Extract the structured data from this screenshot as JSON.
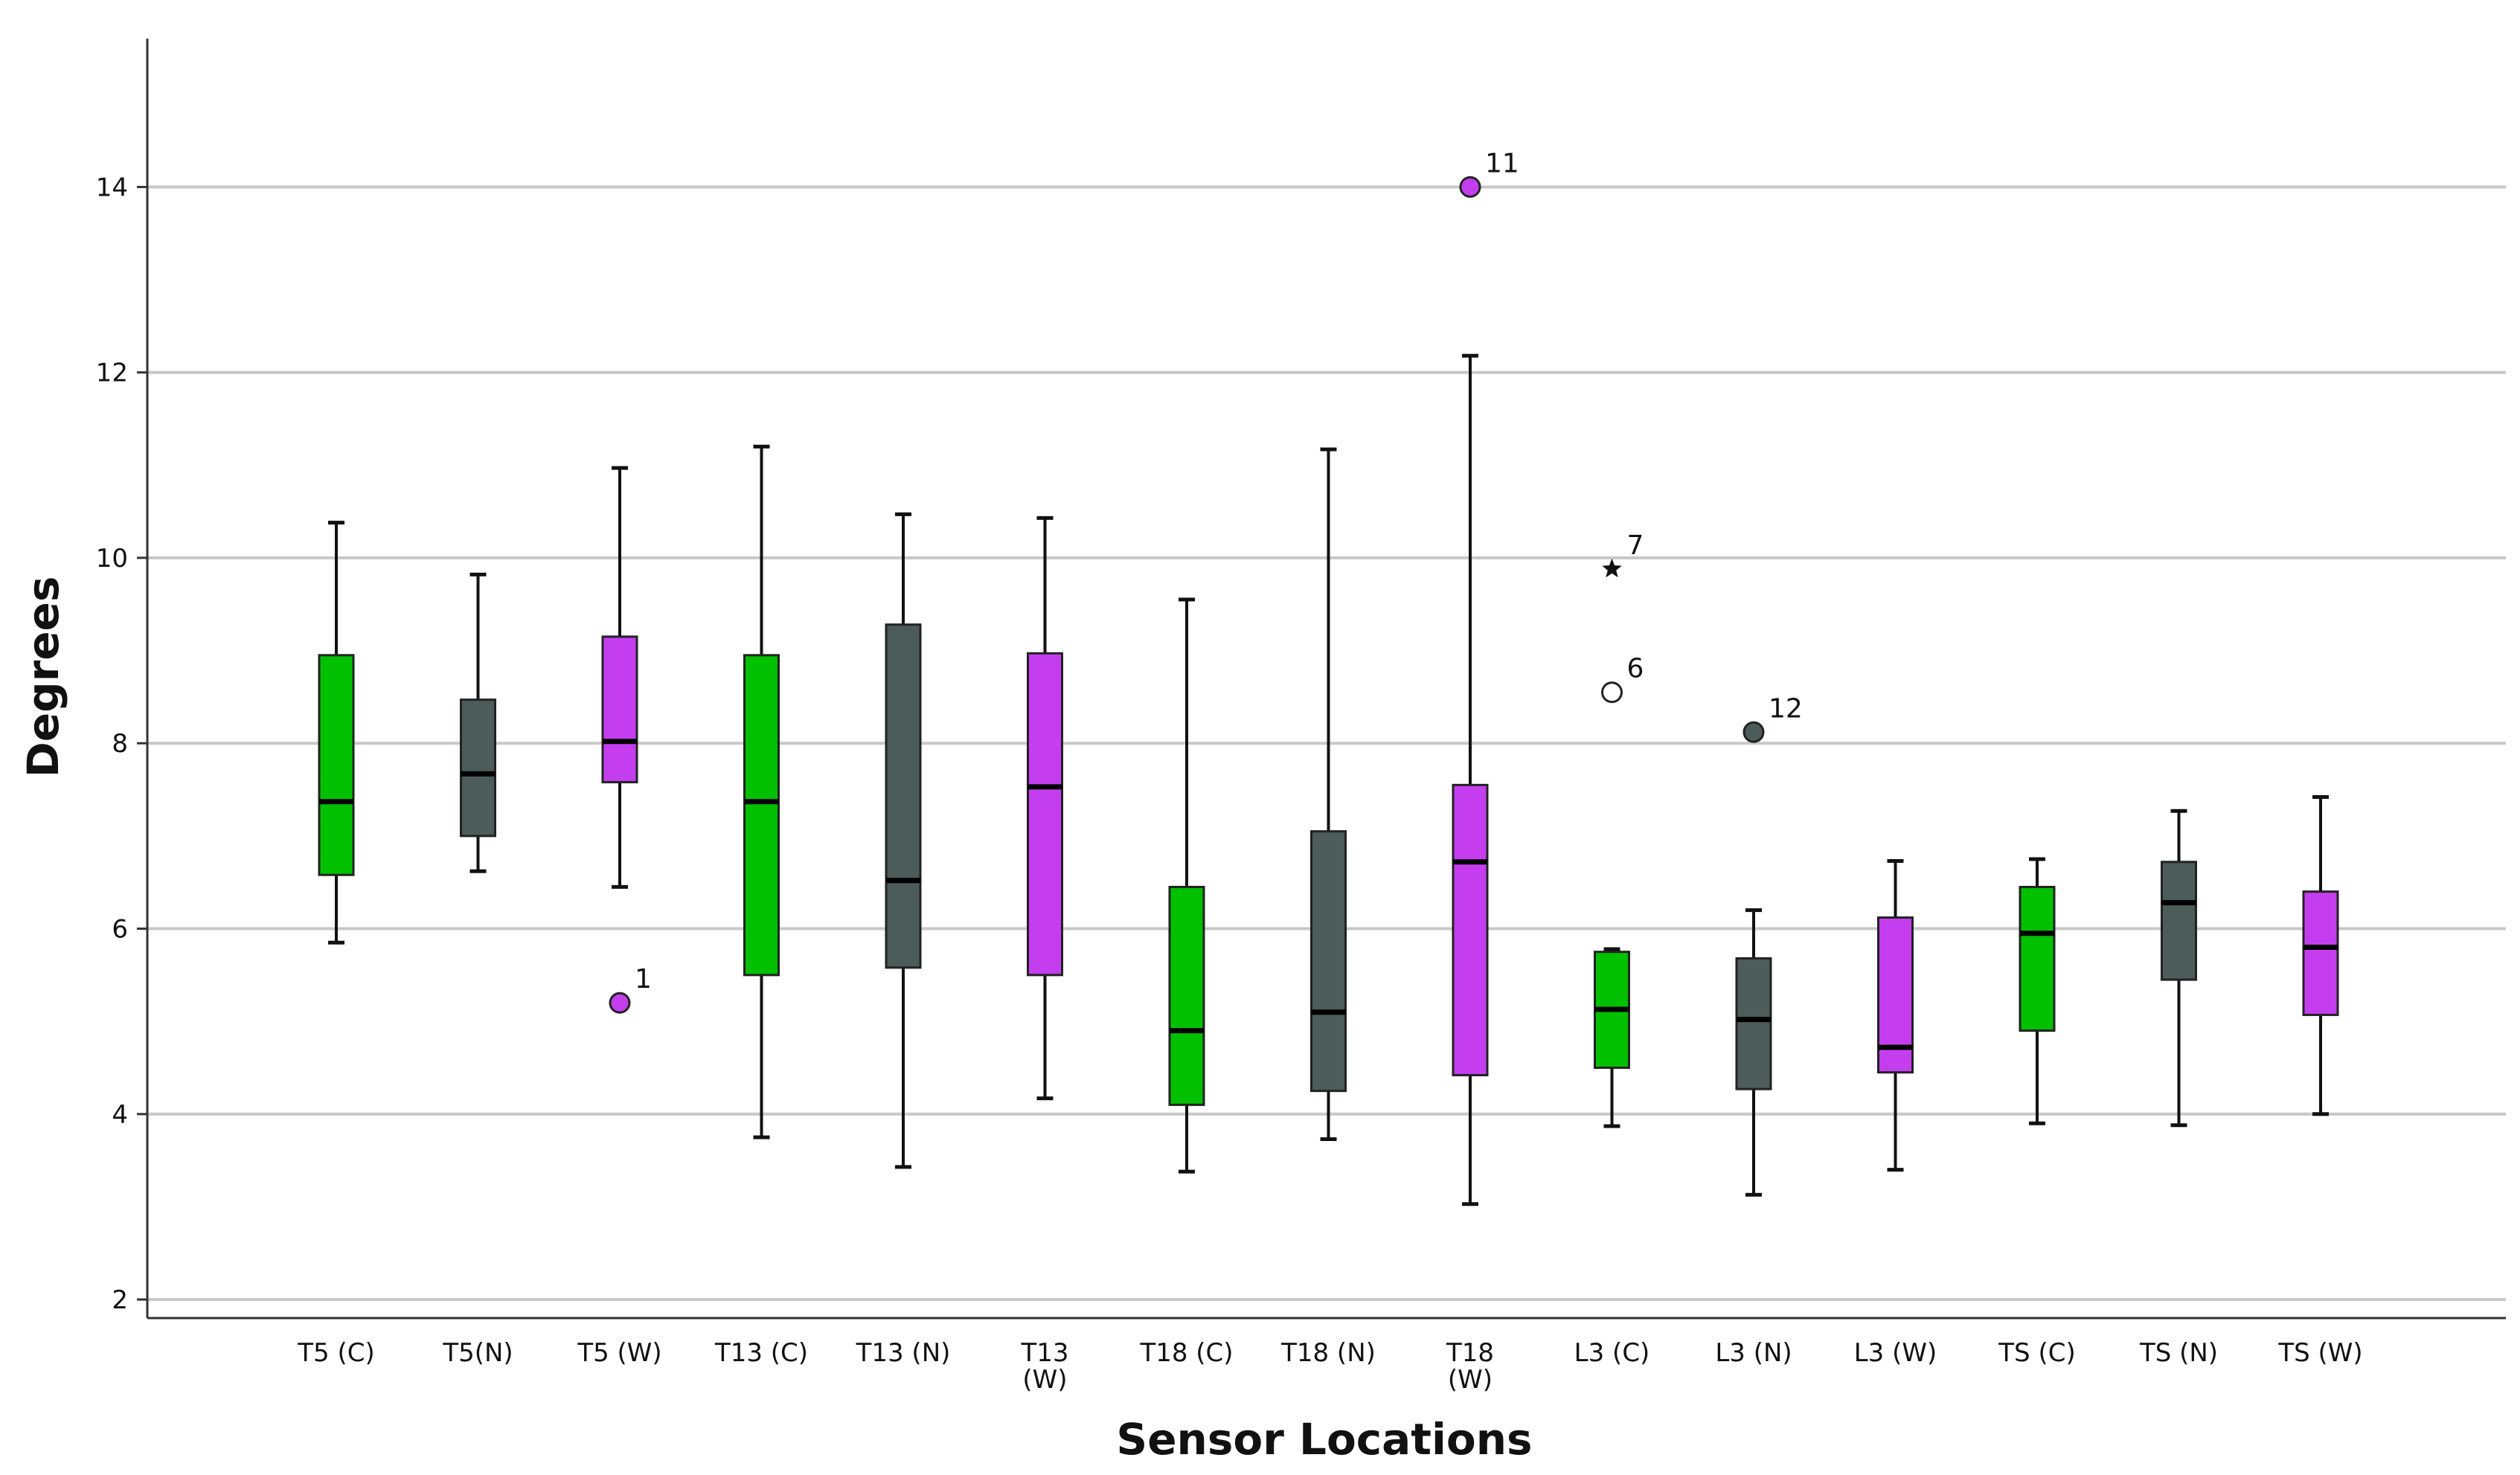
{
  "chart_data": {
    "type": "boxplot",
    "xlabel": "Sensor Locations",
    "ylabel": "Degrees",
    "ylim": [
      1.8,
      15.6
    ],
    "yticks": [
      2,
      4,
      6,
      8,
      10,
      12,
      14
    ],
    "grid": true,
    "legend": "none",
    "categories": [
      {
        "label": [
          "T5 (C)"
        ],
        "color": "#00c000",
        "min": 5.85,
        "q1": 6.58,
        "median": 7.37,
        "q3": 8.95,
        "max": 10.38
      },
      {
        "label": [
          "T5(N)"
        ],
        "color": "#4c5c58",
        "min": 6.62,
        "q1": 7.0,
        "median": 7.67,
        "q3": 8.47,
        "max": 9.82
      },
      {
        "label": [
          "T5 (W)"
        ],
        "color": "#c43ef0",
        "min": 6.45,
        "q1": 7.58,
        "median": 8.02,
        "q3": 9.15,
        "max": 10.97
      },
      {
        "label": [
          "T13 (C)"
        ],
        "color": "#00c000",
        "min": 3.75,
        "q1": 5.5,
        "median": 7.37,
        "q3": 8.95,
        "max": 11.2
      },
      {
        "label": [
          "T13 (N)"
        ],
        "color": "#4c5c58",
        "min": 3.43,
        "q1": 5.58,
        "median": 6.52,
        "q3": 9.28,
        "max": 10.47
      },
      {
        "label": [
          "T13",
          "(W)"
        ],
        "color": "#c43ef0",
        "min": 4.17,
        "q1": 5.5,
        "median": 7.53,
        "q3": 8.97,
        "max": 10.43
      },
      {
        "label": [
          "T18 (C)"
        ],
        "color": "#00c000",
        "min": 3.38,
        "q1": 4.1,
        "median": 4.9,
        "q3": 6.45,
        "max": 9.55
      },
      {
        "label": [
          "T18 (N)"
        ],
        "color": "#4c5c58",
        "min": 3.73,
        "q1": 4.25,
        "median": 5.1,
        "q3": 7.05,
        "max": 11.17
      },
      {
        "label": [
          "T18",
          "(W)"
        ],
        "color": "#c43ef0",
        "min": 3.03,
        "q1": 4.42,
        "median": 6.72,
        "q3": 7.55,
        "max": 12.18
      },
      {
        "label": [
          "L3 (C)"
        ],
        "color": "#00c000",
        "min": 3.87,
        "q1": 4.5,
        "median": 5.13,
        "q3": 5.75,
        "max": 5.78
      },
      {
        "label": [
          "L3 (N)"
        ],
        "color": "#4c5c58",
        "min": 3.13,
        "q1": 4.27,
        "median": 5.02,
        "q3": 5.68,
        "max": 6.2
      },
      {
        "label": [
          "L3 (W)"
        ],
        "color": "#c43ef0",
        "min": 3.4,
        "q1": 4.45,
        "median": 4.72,
        "q3": 6.12,
        "max": 6.73
      },
      {
        "label": [
          "TS (C)"
        ],
        "color": "#00c000",
        "min": 3.9,
        "q1": 4.9,
        "median": 5.95,
        "q3": 6.45,
        "max": 6.75
      },
      {
        "label": [
          "TS (N)"
        ],
        "color": "#4c5c58",
        "min": 3.88,
        "q1": 5.45,
        "median": 6.28,
        "q3": 6.72,
        "max": 7.27
      },
      {
        "label": [
          "TS (W)"
        ],
        "color": "#c43ef0",
        "min": 4.0,
        "q1": 5.07,
        "median": 5.8,
        "q3": 6.4,
        "max": 7.42
      }
    ],
    "outliers": [
      {
        "category": 2,
        "value": 5.2,
        "label": "1",
        "marker": "circle",
        "fill": "#c43ef0"
      },
      {
        "category": 8,
        "value": 14.0,
        "label": "11",
        "marker": "circle",
        "fill": "#c43ef0"
      },
      {
        "category": 9,
        "value": 9.88,
        "label": "7",
        "marker": "star",
        "fill": "#111111"
      },
      {
        "category": 9,
        "value": 8.55,
        "label": "6",
        "marker": "circle",
        "fill": "#ffffff"
      },
      {
        "category": 10,
        "value": 8.12,
        "label": "12",
        "marker": "circle",
        "fill": "#4c5c58"
      }
    ]
  }
}
